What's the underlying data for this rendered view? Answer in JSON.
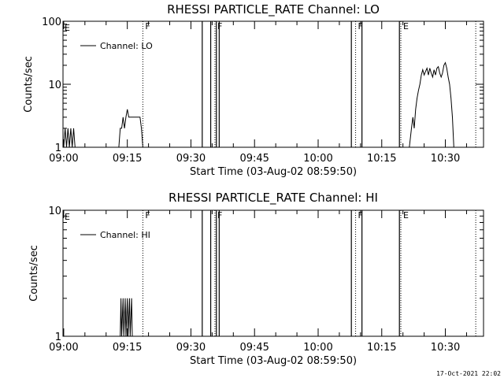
{
  "chart_data": [
    {
      "type": "line",
      "title": "RHESSI PARTICLE_RATE Channel: LO",
      "xlabel": "Start Time (03-Aug-02 08:59:50)",
      "ylabel": "Counts/sec",
      "yscale": "log",
      "ylim": [
        1,
        100
      ],
      "yticks": [
        {
          "v": 1,
          "label": "1"
        },
        {
          "v": 10,
          "label": "10"
        },
        {
          "v": 100,
          "label": "100"
        }
      ],
      "xlim": [
        "08:59:50",
        "10:39:00"
      ],
      "xticks": [
        "09:00",
        "09:15",
        "09:30",
        "09:45",
        "10:00",
        "10:15",
        "10:30"
      ],
      "legend": {
        "label": "Channel: LO",
        "position": "top-left"
      },
      "grid": false,
      "series": [
        {
          "name": "Channel: LO",
          "segments": [
            [
              [
                "09:00:00",
                1
              ],
              [
                "09:00:20",
                2
              ],
              [
                "09:00:40",
                1
              ],
              [
                "09:01:00",
                2
              ],
              [
                "09:01:20",
                1
              ],
              [
                "09:01:40",
                2
              ],
              [
                "09:02:00",
                1
              ],
              [
                "09:02:20",
                2
              ],
              [
                "09:02:40",
                1
              ]
            ],
            [
              [
                "09:13:00",
                1
              ],
              [
                "09:13:20",
                2
              ],
              [
                "09:13:40",
                2
              ],
              [
                "09:14:00",
                3
              ],
              [
                "09:14:20",
                2
              ],
              [
                "09:14:40",
                3
              ],
              [
                "09:15:00",
                4
              ],
              [
                "09:15:20",
                3
              ],
              [
                "09:16:00",
                3
              ],
              [
                "09:17:00",
                3
              ],
              [
                "09:18:00",
                3
              ],
              [
                "09:18:20",
                2
              ],
              [
                "09:18:40",
                1
              ]
            ],
            [
              [
                "10:21:30",
                1
              ],
              [
                "10:22:00",
                2
              ],
              [
                "10:22:20",
                3
              ],
              [
                "10:22:40",
                2
              ],
              [
                "10:23:00",
                4
              ],
              [
                "10:23:20",
                6
              ],
              [
                "10:23:40",
                8
              ],
              [
                "10:24:00",
                10
              ],
              [
                "10:24:20",
                14
              ],
              [
                "10:24:40",
                17
              ],
              [
                "10:25:00",
                14
              ],
              [
                "10:25:20",
                16
              ],
              [
                "10:25:40",
                18
              ],
              [
                "10:26:00",
                14
              ],
              [
                "10:26:20",
                18
              ],
              [
                "10:26:40",
                15
              ],
              [
                "10:27:00",
                13
              ],
              [
                "10:27:20",
                17
              ],
              [
                "10:27:40",
                14
              ],
              [
                "10:28:00",
                18
              ],
              [
                "10:28:20",
                19
              ],
              [
                "10:28:40",
                15
              ],
              [
                "10:29:00",
                13
              ],
              [
                "10:29:20",
                15
              ],
              [
                "10:29:40",
                20
              ],
              [
                "10:30:00",
                22
              ],
              [
                "10:30:20",
                18
              ],
              [
                "10:30:40",
                13
              ],
              [
                "10:31:00",
                10
              ],
              [
                "10:31:20",
                6
              ],
              [
                "10:31:40",
                3
              ],
              [
                "10:32:00",
                1
              ]
            ]
          ]
        }
      ],
      "markers": [
        {
          "type": "dotted",
          "time": "09:18:40",
          "flag": "F"
        },
        {
          "type": "dotted",
          "time": "09:35:40",
          "flag": "F"
        },
        {
          "type": "dotted",
          "time": "10:08:50",
          "flag": "F"
        },
        {
          "type": "dotted",
          "time": "10:19:30",
          "flag": "E"
        },
        {
          "type": "dotted",
          "time": "10:37:10",
          "flag": ""
        },
        {
          "type": "solid",
          "time": "09:32:40"
        },
        {
          "type": "solid",
          "time": "09:34:40"
        },
        {
          "type": "solid",
          "time": "09:36:00"
        },
        {
          "type": "solid",
          "time": "09:36:40"
        },
        {
          "type": "solid",
          "time": "10:07:50"
        },
        {
          "type": "solid",
          "time": "10:10:20"
        },
        {
          "type": "solid",
          "time": "10:19:10"
        }
      ],
      "corner_flag": "E"
    },
    {
      "type": "line",
      "title": "RHESSI PARTICLE_RATE Channel: HI",
      "xlabel": "Start Time (03-Aug-02 08:59:50)",
      "ylabel": "Counts/sec",
      "yscale": "log",
      "ylim": [
        1,
        10
      ],
      "yticks": [
        {
          "v": 1,
          "label": "1"
        },
        {
          "v": 10,
          "label": "10"
        }
      ],
      "xlim": [
        "08:59:50",
        "10:39:00"
      ],
      "xticks": [
        "09:00",
        "09:15",
        "09:30",
        "09:45",
        "10:00",
        "10:15",
        "10:30"
      ],
      "legend": {
        "label": "Channel: HI",
        "position": "top-left"
      },
      "grid": false,
      "series": [
        {
          "name": "Channel: HI",
          "segments": [
            [
              [
                "09:13:20",
                1
              ],
              [
                "09:13:30",
                2
              ],
              [
                "09:13:40",
                1
              ],
              [
                "09:14:00",
                2
              ],
              [
                "09:14:10",
                1
              ],
              [
                "09:14:30",
                2
              ],
              [
                "09:14:40",
                1
              ],
              [
                "09:15:00",
                2
              ],
              [
                "09:15:10",
                1
              ],
              [
                "09:15:30",
                2
              ],
              [
                "09:15:40",
                1
              ],
              [
                "09:16:00",
                2
              ],
              [
                "09:16:10",
                1
              ]
            ]
          ]
        }
      ],
      "markers": [
        {
          "type": "dotted",
          "time": "09:18:40",
          "flag": "F"
        },
        {
          "type": "dotted",
          "time": "09:35:40",
          "flag": "F"
        },
        {
          "type": "dotted",
          "time": "10:08:50",
          "flag": "F"
        },
        {
          "type": "dotted",
          "time": "10:19:30",
          "flag": "E"
        },
        {
          "type": "dotted",
          "time": "10:37:10",
          "flag": ""
        },
        {
          "type": "solid",
          "time": "09:32:40"
        },
        {
          "type": "solid",
          "time": "09:34:40"
        },
        {
          "type": "solid",
          "time": "09:36:00"
        },
        {
          "type": "solid",
          "time": "09:36:40"
        },
        {
          "type": "solid",
          "time": "10:07:50"
        },
        {
          "type": "solid",
          "time": "10:10:20"
        },
        {
          "type": "solid",
          "time": "10:19:10"
        }
      ],
      "corner_flag": "E"
    }
  ],
  "footer": {
    "timestamp": "17-Oct-2021 22:02"
  }
}
